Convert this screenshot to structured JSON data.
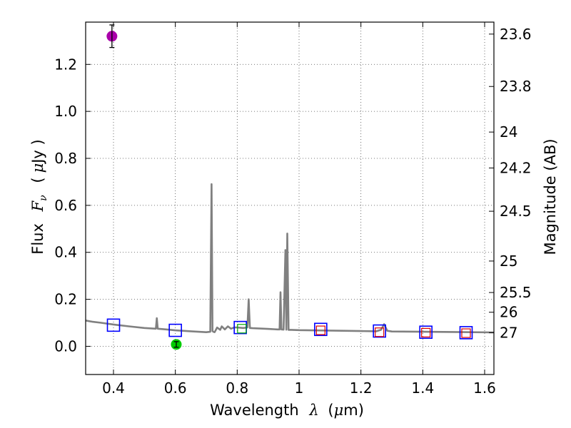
{
  "chart_data": {
    "type": "line",
    "title": "",
    "xlabel": "Wavelength",
    "xlabel_symbol": "λ",
    "xlabel_unit_prefix": "(",
    "xlabel_unit_mu": "μ",
    "xlabel_unit": "m)",
    "ylabel": "Flux",
    "ylabel_symbol_main": "F",
    "ylabel_symbol_sub": "ν",
    "ylabel_unit_prefix": "(",
    "ylabel_unit_mu": "μ",
    "ylabel_unit": "Jy )",
    "y2label": "Magnitude (AB)",
    "xlim": [
      0.31,
      1.63
    ],
    "ylim": [
      -0.12,
      1.38
    ],
    "grid": true,
    "x_ticks": [
      {
        "value": 0.4,
        "label": "0.4"
      },
      {
        "value": 0.6,
        "label": "0.6"
      },
      {
        "value": 0.8,
        "label": "0.8"
      },
      {
        "value": 1.0,
        "label": "1"
      },
      {
        "value": 1.2,
        "label": "1.2"
      },
      {
        "value": 1.4,
        "label": "1.4"
      },
      {
        "value": 1.6,
        "label": "1.6"
      }
    ],
    "y_ticks": [
      {
        "value": 0.0,
        "label": "0.0"
      },
      {
        "value": 0.2,
        "label": "0.2"
      },
      {
        "value": 0.4,
        "label": "0.4"
      },
      {
        "value": 0.6,
        "label": "0.6"
      },
      {
        "value": 0.8,
        "label": "0.8"
      },
      {
        "value": 1.0,
        "label": "1.0"
      },
      {
        "value": 1.2,
        "label": "1.2"
      }
    ],
    "mag_ticks": [
      {
        "label": "23.6",
        "flux": 1.329
      },
      {
        "label": "23.8",
        "flux": 1.106
      },
      {
        "label": "24",
        "flux": 0.912
      },
      {
        "label": "24.2",
        "flux": 0.759
      },
      {
        "label": "24.5",
        "flux": 0.575
      },
      {
        "label": "25",
        "flux": 0.363
      },
      {
        "label": "25.5",
        "flux": 0.229
      },
      {
        "label": "26",
        "flux": 0.145
      },
      {
        "label": "27",
        "flux": 0.058
      }
    ],
    "series": [
      {
        "name": "model spectrum",
        "color": "#808080",
        "x": [
          0.31,
          0.33,
          0.36,
          0.4,
          0.45,
          0.5,
          0.537,
          0.54,
          0.543,
          0.57,
          0.6,
          0.65,
          0.7,
          0.713,
          0.717,
          0.72,
          0.723,
          0.727,
          0.735,
          0.745,
          0.75,
          0.76,
          0.77,
          0.78,
          0.79,
          0.8,
          0.82,
          0.833,
          0.837,
          0.841,
          0.85,
          0.9,
          0.93,
          0.937,
          0.94,
          0.943,
          0.95,
          0.956,
          0.959,
          0.962,
          0.966,
          0.97,
          0.975,
          1.0,
          1.1,
          1.2,
          1.25,
          1.265,
          1.275,
          1.285,
          1.3,
          1.4,
          1.5,
          1.63
        ],
        "y": [
          0.11,
          0.105,
          0.1,
          0.093,
          0.085,
          0.078,
          0.075,
          0.12,
          0.075,
          0.072,
          0.068,
          0.064,
          0.06,
          0.062,
          0.69,
          0.065,
          0.062,
          0.06,
          0.08,
          0.07,
          0.085,
          0.072,
          0.085,
          0.075,
          0.08,
          0.08,
          0.078,
          0.08,
          0.2,
          0.078,
          0.077,
          0.074,
          0.072,
          0.072,
          0.23,
          0.072,
          0.071,
          0.41,
          0.071,
          0.48,
          0.07,
          0.07,
          0.07,
          0.069,
          0.067,
          0.065,
          0.064,
          0.07,
          0.094,
          0.066,
          0.063,
          0.062,
          0.061,
          0.059
        ]
      }
    ],
    "photometry_blue": {
      "name": "model photometry",
      "color": "#0000ff",
      "x": [
        0.4,
        0.6,
        0.81,
        1.07,
        1.26,
        1.41,
        1.54
      ],
      "y": [
        0.09,
        0.068,
        0.08,
        0.072,
        0.065,
        0.06,
        0.058
      ]
    },
    "photometry_inner": {
      "name": "inner markers",
      "x": [
        0.815,
        1.07,
        1.26,
        1.41,
        1.54
      ],
      "y": [
        0.075,
        0.068,
        0.06,
        0.058,
        0.056
      ],
      "colors": [
        "#00aa00",
        "#dd0000",
        "#dd0000",
        "#dd0000",
        "#dd0000"
      ]
    },
    "detections": [
      {
        "name": "magenta detection",
        "x": 0.395,
        "y": 1.32,
        "err": 0.048,
        "color": "#aa00aa"
      },
      {
        "name": "green detection",
        "x": 0.603,
        "y": 0.008,
        "err": 0.012,
        "color": "#00cc00"
      }
    ]
  }
}
